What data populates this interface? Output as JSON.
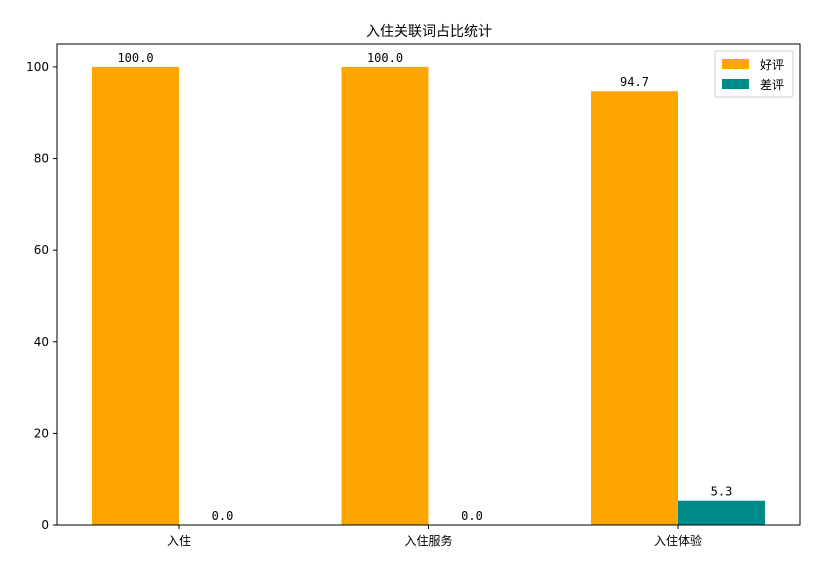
{
  "chart_data": {
    "type": "bar",
    "title": "入住关联词占比统计",
    "xlabel": "",
    "ylabel": "",
    "categories": [
      "入住",
      "入住服务",
      "入住体验"
    ],
    "series": [
      {
        "name": "好评",
        "values": [
          100.0,
          100.0,
          94.7
        ],
        "color": "#ffa500"
      },
      {
        "name": "差评",
        "values": [
          0.0,
          0.0,
          5.3
        ],
        "color": "#008b8b"
      }
    ],
    "data_labels": [
      [
        "100.0",
        "100.0",
        "94.7"
      ],
      [
        "0.0",
        "0.0",
        "5.3"
      ]
    ],
    "ylim": [
      0,
      105
    ],
    "yticks": [
      0,
      20,
      40,
      60,
      80,
      100
    ],
    "grid": false,
    "legend_position": "top-right"
  }
}
